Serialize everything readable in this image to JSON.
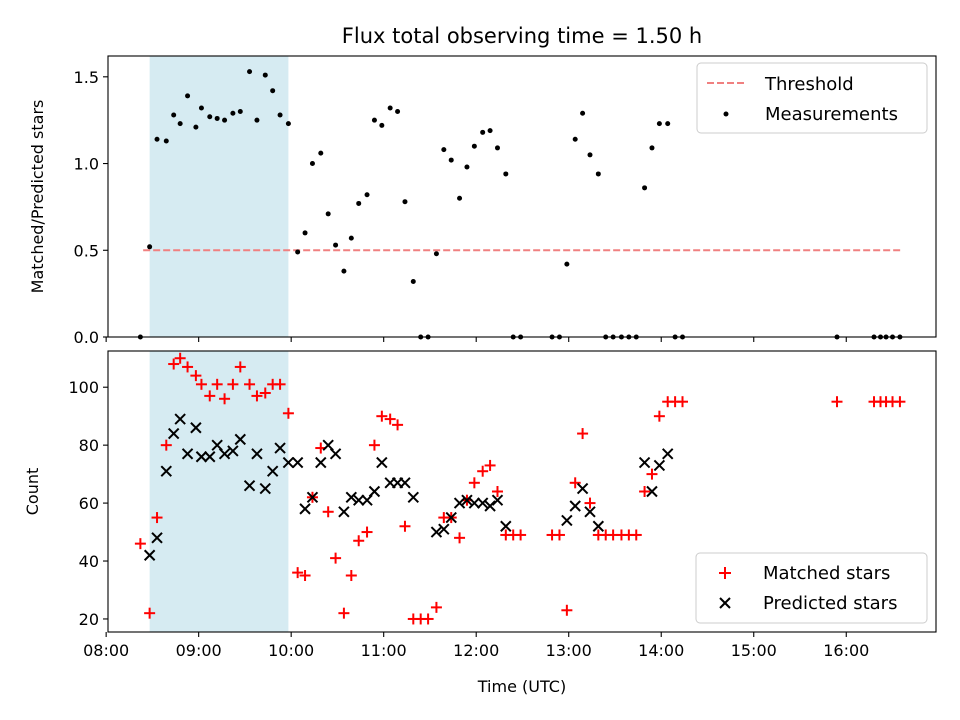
{
  "figure": {
    "title": "Flux total observing time = 1.50 h"
  },
  "chart_data": [
    {
      "type": "scatter",
      "title": "Flux total observing time = 1.50 h",
      "xlabel": "",
      "ylabel": "Matched/Predicted stars",
      "x_unit": "hours UTC",
      "xlim": [
        8.02,
        16.97
      ],
      "ylim": [
        0.0,
        1.62
      ],
      "yticks": [
        0.0,
        0.5,
        1.0,
        1.5
      ],
      "ytick_labels": [
        "0.0",
        "0.5",
        "1.0",
        "1.5"
      ],
      "grid": false,
      "legend_position": "top-right",
      "shaded_interval": {
        "x": [
          8.47,
          9.97
        ],
        "color": "#add8e6"
      },
      "series": [
        {
          "name": "Threshold",
          "kind": "line",
          "style": "dashed",
          "color": "#f08080",
          "x": [
            8.4,
            16.6
          ],
          "y": [
            0.5,
            0.5
          ]
        },
        {
          "name": "Measurements",
          "kind": "scatter",
          "marker": "dot",
          "color": "#000000",
          "points": [
            [
              8.37,
              0.0
            ],
            [
              8.47,
              0.52
            ],
            [
              8.55,
              1.14
            ],
            [
              8.65,
              1.13
            ],
            [
              8.73,
              1.28
            ],
            [
              8.8,
              1.23
            ],
            [
              8.88,
              1.39
            ],
            [
              8.97,
              1.21
            ],
            [
              9.03,
              1.32
            ],
            [
              9.12,
              1.27
            ],
            [
              9.2,
              1.26
            ],
            [
              9.28,
              1.25
            ],
            [
              9.37,
              1.29
            ],
            [
              9.45,
              1.3
            ],
            [
              9.55,
              1.53
            ],
            [
              9.63,
              1.25
            ],
            [
              9.72,
              1.51
            ],
            [
              9.8,
              1.42
            ],
            [
              9.88,
              1.28
            ],
            [
              9.97,
              1.23
            ],
            [
              10.07,
              0.49
            ],
            [
              10.15,
              0.6
            ],
            [
              10.23,
              1.0
            ],
            [
              10.32,
              1.06
            ],
            [
              10.4,
              0.71
            ],
            [
              10.48,
              0.53
            ],
            [
              10.57,
              0.38
            ],
            [
              10.65,
              0.57
            ],
            [
              10.73,
              0.77
            ],
            [
              10.82,
              0.82
            ],
            [
              10.9,
              1.25
            ],
            [
              10.98,
              1.22
            ],
            [
              11.07,
              1.32
            ],
            [
              11.15,
              1.3
            ],
            [
              11.23,
              0.78
            ],
            [
              11.32,
              0.32
            ],
            [
              11.4,
              0.0
            ],
            [
              11.48,
              0.0
            ],
            [
              11.57,
              0.48
            ],
            [
              11.65,
              1.08
            ],
            [
              11.73,
              1.02
            ],
            [
              11.82,
              0.8
            ],
            [
              11.9,
              0.98
            ],
            [
              11.98,
              1.1
            ],
            [
              12.07,
              1.18
            ],
            [
              12.15,
              1.19
            ],
            [
              12.23,
              1.09
            ],
            [
              12.32,
              0.94
            ],
            [
              12.4,
              0.0
            ],
            [
              12.48,
              0.0
            ],
            [
              12.82,
              0.0
            ],
            [
              12.9,
              0.0
            ],
            [
              12.98,
              0.42
            ],
            [
              13.07,
              1.14
            ],
            [
              13.15,
              1.29
            ],
            [
              13.23,
              1.05
            ],
            [
              13.32,
              0.94
            ],
            [
              13.4,
              0.0
            ],
            [
              13.48,
              0.0
            ],
            [
              13.57,
              0.0
            ],
            [
              13.65,
              0.0
            ],
            [
              13.73,
              0.0
            ],
            [
              13.82,
              0.86
            ],
            [
              13.9,
              1.09
            ],
            [
              13.98,
              1.23
            ],
            [
              14.07,
              1.23
            ],
            [
              14.15,
              0.0
            ],
            [
              14.23,
              0.0
            ],
            [
              15.9,
              0.0
            ],
            [
              16.3,
              0.0
            ],
            [
              16.37,
              0.0
            ],
            [
              16.43,
              0.0
            ],
            [
              16.5,
              0.0
            ],
            [
              16.58,
              0.0
            ]
          ]
        }
      ]
    },
    {
      "type": "scatter",
      "title": "",
      "xlabel": "Time (UTC)",
      "ylabel": "Count",
      "x_unit": "hours UTC",
      "xlim": [
        8.02,
        16.97
      ],
      "ylim": [
        15.5,
        112.5
      ],
      "yticks": [
        20,
        40,
        60,
        80,
        100
      ],
      "ytick_labels": [
        "20",
        "40",
        "60",
        "80",
        "100"
      ],
      "xticks": [
        8,
        9,
        10,
        11,
        12,
        13,
        14,
        15,
        16
      ],
      "xtick_labels": [
        "08:00",
        "09:00",
        "10:00",
        "11:00",
        "12:00",
        "13:00",
        "14:00",
        "15:00",
        "16:00"
      ],
      "grid": false,
      "legend_position": "bottom-right",
      "shaded_interval": {
        "x": [
          8.47,
          9.97
        ],
        "color": "#add8e6"
      },
      "series": [
        {
          "name": "Matched stars",
          "kind": "scatter",
          "marker": "plus",
          "color": "#ff0000",
          "points": [
            [
              8.37,
              46
            ],
            [
              8.47,
              22
            ],
            [
              8.55,
              55
            ],
            [
              8.65,
              80
            ],
            [
              8.73,
              108
            ],
            [
              8.8,
              110
            ],
            [
              8.88,
              107
            ],
            [
              8.97,
              104
            ],
            [
              9.03,
              101
            ],
            [
              9.12,
              97
            ],
            [
              9.2,
              101
            ],
            [
              9.28,
              96
            ],
            [
              9.37,
              101
            ],
            [
              9.45,
              107
            ],
            [
              9.55,
              101
            ],
            [
              9.63,
              97
            ],
            [
              9.72,
              98
            ],
            [
              9.8,
              101
            ],
            [
              9.88,
              101
            ],
            [
              9.97,
              91
            ],
            [
              10.07,
              36
            ],
            [
              10.15,
              35
            ],
            [
              10.23,
              62
            ],
            [
              10.32,
              79
            ],
            [
              10.4,
              57
            ],
            [
              10.48,
              41
            ],
            [
              10.57,
              22
            ],
            [
              10.65,
              35
            ],
            [
              10.73,
              47
            ],
            [
              10.82,
              50
            ],
            [
              10.9,
              80
            ],
            [
              10.98,
              90
            ],
            [
              11.07,
              89
            ],
            [
              11.15,
              87
            ],
            [
              11.23,
              52
            ],
            [
              11.32,
              20
            ],
            [
              11.4,
              20
            ],
            [
              11.48,
              20
            ],
            [
              11.57,
              24
            ],
            [
              11.65,
              55
            ],
            [
              11.73,
              55
            ],
            [
              11.82,
              48
            ],
            [
              11.9,
              61
            ],
            [
              11.98,
              67
            ],
            [
              12.07,
              71
            ],
            [
              12.15,
              73
            ],
            [
              12.23,
              64
            ],
            [
              12.32,
              49
            ],
            [
              12.4,
              49
            ],
            [
              12.48,
              49
            ],
            [
              12.82,
              49
            ],
            [
              12.9,
              49
            ],
            [
              12.98,
              23
            ],
            [
              13.07,
              67
            ],
            [
              13.15,
              84
            ],
            [
              13.23,
              60
            ],
            [
              13.32,
              49
            ],
            [
              13.4,
              49
            ],
            [
              13.48,
              49
            ],
            [
              13.57,
              49
            ],
            [
              13.65,
              49
            ],
            [
              13.73,
              49
            ],
            [
              13.82,
              64
            ],
            [
              13.9,
              70
            ],
            [
              13.98,
              90
            ],
            [
              14.07,
              95
            ],
            [
              14.15,
              95
            ],
            [
              14.23,
              95
            ],
            [
              15.9,
              95
            ],
            [
              16.3,
              95
            ],
            [
              16.37,
              95
            ],
            [
              16.43,
              95
            ],
            [
              16.5,
              95
            ],
            [
              16.58,
              95
            ]
          ]
        },
        {
          "name": "Predicted stars",
          "kind": "scatter",
          "marker": "x",
          "color": "#000000",
          "points": [
            [
              8.47,
              42
            ],
            [
              8.55,
              48
            ],
            [
              8.65,
              71
            ],
            [
              8.73,
              84
            ],
            [
              8.8,
              89
            ],
            [
              8.88,
              77
            ],
            [
              8.97,
              86
            ],
            [
              9.03,
              76
            ],
            [
              9.12,
              76
            ],
            [
              9.2,
              80
            ],
            [
              9.28,
              77
            ],
            [
              9.37,
              78
            ],
            [
              9.45,
              82
            ],
            [
              9.55,
              66
            ],
            [
              9.63,
              77
            ],
            [
              9.72,
              65
            ],
            [
              9.8,
              71
            ],
            [
              9.88,
              79
            ],
            [
              9.97,
              74
            ],
            [
              10.07,
              74
            ],
            [
              10.15,
              58
            ],
            [
              10.23,
              62
            ],
            [
              10.32,
              74
            ],
            [
              10.4,
              80
            ],
            [
              10.48,
              77
            ],
            [
              10.57,
              57
            ],
            [
              10.65,
              62
            ],
            [
              10.73,
              61
            ],
            [
              10.82,
              61
            ],
            [
              10.9,
              64
            ],
            [
              10.98,
              74
            ],
            [
              11.07,
              67
            ],
            [
              11.15,
              67
            ],
            [
              11.23,
              67
            ],
            [
              11.32,
              62
            ],
            [
              11.57,
              50
            ],
            [
              11.65,
              51
            ],
            [
              11.73,
              55
            ],
            [
              11.82,
              60
            ],
            [
              11.9,
              61
            ],
            [
              11.98,
              60
            ],
            [
              12.07,
              60
            ],
            [
              12.15,
              59
            ],
            [
              12.23,
              61
            ],
            [
              12.32,
              52
            ],
            [
              12.98,
              54
            ],
            [
              13.07,
              59
            ],
            [
              13.15,
              65
            ],
            [
              13.23,
              57
            ],
            [
              13.32,
              52
            ],
            [
              13.82,
              74
            ],
            [
              13.9,
              64
            ],
            [
              13.98,
              73
            ],
            [
              14.07,
              77
            ]
          ]
        }
      ]
    }
  ]
}
